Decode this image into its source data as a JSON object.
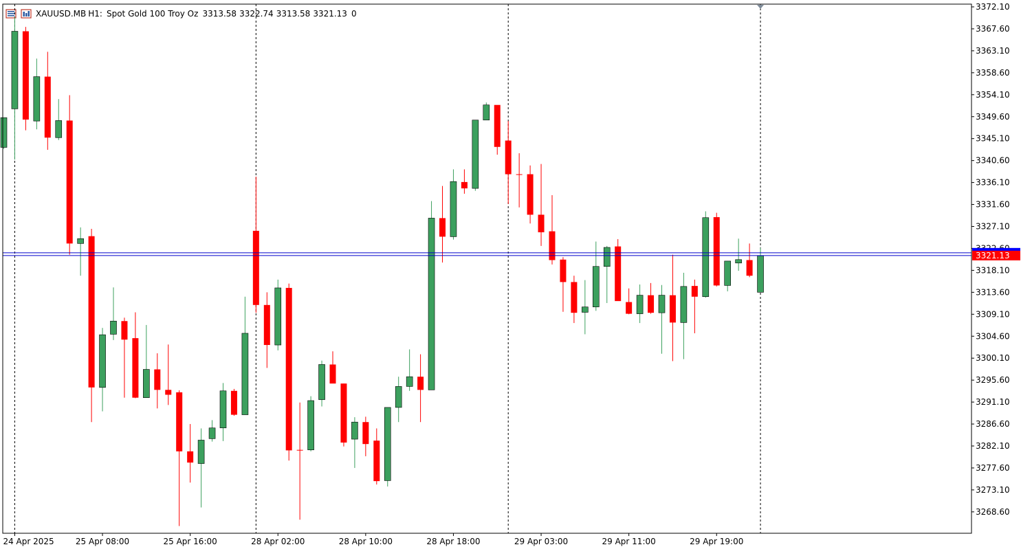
{
  "header": {
    "symbol": "XAUUSD.MB",
    "timeframe": "H1:",
    "description": "Spot Gold 100 Troy Oz",
    "open": "3313.58",
    "high": "3322.74",
    "low": "3313.58",
    "close": "3321.13",
    "volume": "0",
    "icons": [
      "trade-panel-icon",
      "chart-properties-icon"
    ]
  },
  "colors": {
    "bull": "#3ca05e",
    "bear": "#ff0000",
    "bid_line": "#0000cc",
    "ask_line": "#0000cc",
    "price_tag_bg": "#ff0000",
    "ask_tag_bg": "#0000ff",
    "axis": "#000000",
    "session_separator": "#000000"
  },
  "chart_data": {
    "type": "candlestick",
    "symbol": "XAUUSD.MB",
    "timeframe": "H1",
    "y_axis_ticks": [
      "3372.10",
      "3367.60",
      "3363.10",
      "3358.60",
      "3354.10",
      "3349.60",
      "3345.10",
      "3340.60",
      "3336.10",
      "3331.60",
      "3327.10",
      "3322.60",
      "3318.10",
      "3313.60",
      "3309.10",
      "3304.60",
      "3300.10",
      "3295.60",
      "3291.10",
      "3286.60",
      "3282.10",
      "3277.60",
      "3273.10",
      "3268.60"
    ],
    "ylim": [
      3265.5,
      3372.1
    ],
    "x_axis_labels": [
      {
        "i": 1,
        "label": "24 Apr 2025"
      },
      {
        "i": 9,
        "label": "25 Apr 08:00"
      },
      {
        "i": 17,
        "label": "25 Apr 16:00"
      },
      {
        "i": 25,
        "label": "28 Apr 02:00"
      },
      {
        "i": 33,
        "label": "28 Apr 10:00"
      },
      {
        "i": 41,
        "label": "28 Apr 18:00"
      },
      {
        "i": 49,
        "label": "29 Apr 03:00"
      },
      {
        "i": 57,
        "label": "29 Apr 11:00"
      },
      {
        "i": 65,
        "label": "29 Apr 19:00"
      }
    ],
    "session_separators": [
      1,
      23,
      46,
      69
    ],
    "current_price": "3321.13",
    "ask_price": 3321.7,
    "candles": [
      {
        "o": 3343.3,
        "h": 3349.4,
        "l": 3343.0,
        "c": 3349.4
      },
      {
        "o": 3351.2,
        "h": 3370.0,
        "l": 3340.8,
        "c": 3367.1
      },
      {
        "o": 3367.1,
        "h": 3368.0,
        "l": 3346.8,
        "c": 3349.0
      },
      {
        "o": 3348.7,
        "h": 3361.5,
        "l": 3347.0,
        "c": 3357.8
      },
      {
        "o": 3357.8,
        "h": 3362.9,
        "l": 3342.8,
        "c": 3345.3
      },
      {
        "o": 3345.3,
        "h": 3353.2,
        "l": 3344.8,
        "c": 3348.8
      },
      {
        "o": 3348.8,
        "h": 3354.0,
        "l": 3321.3,
        "c": 3323.6
      },
      {
        "o": 3323.6,
        "h": 3326.9,
        "l": 3317.0,
        "c": 3324.6
      },
      {
        "o": 3325.1,
        "h": 3326.6,
        "l": 3287.0,
        "c": 3294.1
      },
      {
        "o": 3294.1,
        "h": 3306.3,
        "l": 3289.2,
        "c": 3304.9
      },
      {
        "o": 3305.0,
        "h": 3314.6,
        "l": 3303.8,
        "c": 3307.7
      },
      {
        "o": 3307.7,
        "h": 3308.4,
        "l": 3292.0,
        "c": 3303.9
      },
      {
        "o": 3304.2,
        "h": 3309.5,
        "l": 3291.9,
        "c": 3292.0
      },
      {
        "o": 3292.0,
        "h": 3306.9,
        "l": 3292.0,
        "c": 3297.8
      },
      {
        "o": 3297.8,
        "h": 3301.1,
        "l": 3289.8,
        "c": 3293.6
      },
      {
        "o": 3293.6,
        "h": 3302.9,
        "l": 3290.5,
        "c": 3292.6
      },
      {
        "o": 3293.1,
        "h": 3293.5,
        "l": 3265.7,
        "c": 3281.0
      },
      {
        "o": 3281.0,
        "h": 3286.6,
        "l": 3274.6,
        "c": 3278.7
      },
      {
        "o": 3278.5,
        "h": 3285.7,
        "l": 3269.5,
        "c": 3283.3
      },
      {
        "o": 3283.6,
        "h": 3287.4,
        "l": 3283.0,
        "c": 3285.8
      },
      {
        "o": 3285.8,
        "h": 3295.0,
        "l": 3283.1,
        "c": 3293.4
      },
      {
        "o": 3293.4,
        "h": 3293.8,
        "l": 3288.3,
        "c": 3288.5
      },
      {
        "o": 3288.5,
        "h": 3312.7,
        "l": 3288.5,
        "c": 3305.2
      },
      {
        "o": 3326.2,
        "h": 3337.3,
        "l": 3309.4,
        "c": 3311.0
      },
      {
        "o": 3311.0,
        "h": 3313.6,
        "l": 3298.1,
        "c": 3302.8
      },
      {
        "o": 3302.8,
        "h": 3316.2,
        "l": 3301.7,
        "c": 3314.5
      },
      {
        "o": 3314.5,
        "h": 3315.4,
        "l": 3279.1,
        "c": 3281.2
      },
      {
        "o": 3281.3,
        "h": 3291.0,
        "l": 3267.0,
        "c": 3281.2
      },
      {
        "o": 3281.3,
        "h": 3292.3,
        "l": 3281.0,
        "c": 3291.4
      },
      {
        "o": 3291.6,
        "h": 3299.6,
        "l": 3290.2,
        "c": 3298.8
      },
      {
        "o": 3298.8,
        "h": 3301.5,
        "l": 3295.2,
        "c": 3294.9
      },
      {
        "o": 3294.9,
        "h": 3294.9,
        "l": 3282.0,
        "c": 3282.8
      },
      {
        "o": 3283.5,
        "h": 3288.0,
        "l": 3277.6,
        "c": 3287.0
      },
      {
        "o": 3287.0,
        "h": 3288.1,
        "l": 3280.0,
        "c": 3282.5
      },
      {
        "o": 3283.2,
        "h": 3285.7,
        "l": 3274.2,
        "c": 3274.9
      },
      {
        "o": 3275.0,
        "h": 3290.0,
        "l": 3273.8,
        "c": 3290.0
      },
      {
        "o": 3290.0,
        "h": 3296.3,
        "l": 3287.0,
        "c": 3294.3
      },
      {
        "o": 3294.3,
        "h": 3301.9,
        "l": 3293.4,
        "c": 3296.3
      },
      {
        "o": 3296.3,
        "h": 3300.9,
        "l": 3287.0,
        "c": 3293.6
      },
      {
        "o": 3293.6,
        "h": 3332.3,
        "l": 3293.6,
        "c": 3328.8
      },
      {
        "o": 3328.8,
        "h": 3335.4,
        "l": 3319.7,
        "c": 3325.0
      },
      {
        "o": 3325.0,
        "h": 3338.8,
        "l": 3324.4,
        "c": 3336.3
      },
      {
        "o": 3336.2,
        "h": 3338.8,
        "l": 3333.8,
        "c": 3334.9
      },
      {
        "o": 3334.9,
        "h": 3348.9,
        "l": 3334.4,
        "c": 3348.9
      },
      {
        "o": 3348.9,
        "h": 3352.5,
        "l": 3348.9,
        "c": 3352.0
      },
      {
        "o": 3352.0,
        "h": 3351.6,
        "l": 3341.8,
        "c": 3343.4
      },
      {
        "o": 3344.7,
        "h": 3348.7,
        "l": 3331.7,
        "c": 3337.8
      },
      {
        "o": 3337.8,
        "h": 3342.1,
        "l": 3331.0,
        "c": 3337.7
      },
      {
        "o": 3337.8,
        "h": 3339.6,
        "l": 3327.7,
        "c": 3329.5
      },
      {
        "o": 3329.5,
        "h": 3339.9,
        "l": 3323.1,
        "c": 3325.9
      },
      {
        "o": 3326.1,
        "h": 3333.5,
        "l": 3319.3,
        "c": 3320.2
      },
      {
        "o": 3320.3,
        "h": 3320.8,
        "l": 3309.6,
        "c": 3315.7
      },
      {
        "o": 3315.7,
        "h": 3317.0,
        "l": 3307.3,
        "c": 3309.4
      },
      {
        "o": 3309.5,
        "h": 3316.1,
        "l": 3305.0,
        "c": 3310.6
      },
      {
        "o": 3310.6,
        "h": 3324.0,
        "l": 3309.8,
        "c": 3318.9
      },
      {
        "o": 3318.9,
        "h": 3323.1,
        "l": 3311.4,
        "c": 3322.8
      },
      {
        "o": 3323.0,
        "h": 3324.5,
        "l": 3311.9,
        "c": 3311.8
      },
      {
        "o": 3311.6,
        "h": 3314.4,
        "l": 3309.1,
        "c": 3309.2
      },
      {
        "o": 3309.2,
        "h": 3315.2,
        "l": 3307.3,
        "c": 3313.0
      },
      {
        "o": 3313.0,
        "h": 3315.5,
        "l": 3309.2,
        "c": 3309.4
      },
      {
        "o": 3309.4,
        "h": 3315.1,
        "l": 3301.0,
        "c": 3313.0
      },
      {
        "o": 3313.0,
        "h": 3321.3,
        "l": 3299.5,
        "c": 3307.4
      },
      {
        "o": 3307.4,
        "h": 3317.6,
        "l": 3299.9,
        "c": 3314.8
      },
      {
        "o": 3314.9,
        "h": 3316.2,
        "l": 3305.2,
        "c": 3312.7
      },
      {
        "o": 3312.7,
        "h": 3330.2,
        "l": 3312.5,
        "c": 3328.9
      },
      {
        "o": 3329.0,
        "h": 3329.9,
        "l": 3314.8,
        "c": 3315.0
      },
      {
        "o": 3315.0,
        "h": 3320.0,
        "l": 3313.8,
        "c": 3320.0
      },
      {
        "o": 3319.6,
        "h": 3324.6,
        "l": 3318.0,
        "c": 3320.3
      },
      {
        "o": 3320.2,
        "h": 3323.6,
        "l": 3316.7,
        "c": 3317.0
      },
      {
        "o": 3313.6,
        "h": 3322.7,
        "l": 3313.6,
        "c": 3321.1
      }
    ]
  }
}
